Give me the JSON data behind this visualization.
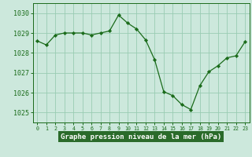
{
  "x": [
    0,
    1,
    2,
    3,
    4,
    5,
    6,
    7,
    8,
    9,
    10,
    11,
    12,
    13,
    14,
    15,
    16,
    17,
    18,
    19,
    20,
    21,
    22,
    23
  ],
  "y": [
    1028.6,
    1028.4,
    1028.9,
    1029.0,
    1029.0,
    1029.0,
    1028.9,
    1029.0,
    1029.1,
    1029.9,
    1029.5,
    1029.2,
    1028.65,
    1027.65,
    1026.05,
    1025.85,
    1025.4,
    1025.15,
    1026.35,
    1027.05,
    1027.35,
    1027.75,
    1027.85,
    1028.55
  ],
  "line_color": "#1a6b1a",
  "marker": "D",
  "marker_size": 2.2,
  "bg_color": "#cce8dc",
  "grid_color": "#99ccb3",
  "ylabel_ticks": [
    1025,
    1026,
    1027,
    1028,
    1029,
    1030
  ],
  "xlabel": "Graphe pression niveau de la mer (hPa)",
  "ylim": [
    1024.5,
    1030.5
  ],
  "xlim": [
    -0.5,
    23.5
  ],
  "tick_color": "#1a6b1a",
  "xlabel_fontsize": 6.5,
  "tick_fontsize": 6.0,
  "bottom_bar_color": "#2a6b2a",
  "bottom_bar_height": 0.18
}
